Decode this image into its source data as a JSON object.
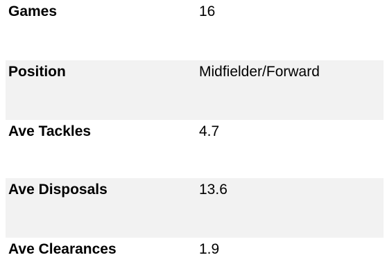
{
  "table": {
    "rows": [
      [
        "Games",
        16
      ],
      [
        "Position",
        "Midfielder/Forward"
      ],
      [
        "Ave Tackles",
        4.7
      ],
      [
        "Ave Disposals",
        13.6
      ],
      [
        "Ave Clearances",
        1.9
      ]
    ]
  }
}
